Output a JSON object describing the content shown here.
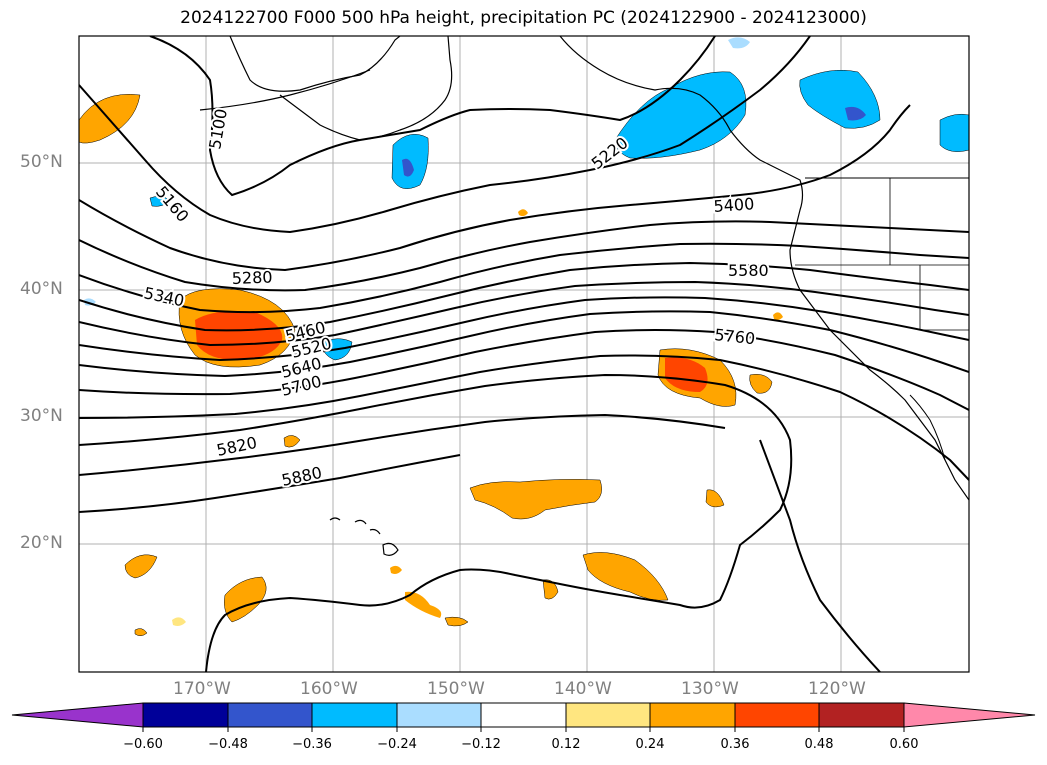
{
  "title": "2024122700 F000 500 hPa height, precipitation PC (2024122900 - 2024123000)",
  "lat_labels": [
    "50°N",
    "40°N",
    "30°N",
    "20°N"
  ],
  "lon_labels": [
    "170°W",
    "160°W",
    "150°W",
    "140°W",
    "130°W",
    "120°W"
  ],
  "colorbar": {
    "ticks": [
      "−0.60",
      "−0.48",
      "−0.36",
      "−0.24",
      "−0.12",
      "0.12",
      "0.24",
      "0.36",
      "0.48",
      "0.60"
    ],
    "colors": [
      "#9933cc",
      "#000099",
      "#3355cc",
      "#00bbff",
      "#aaddff",
      "#ffffff",
      "#ffe680",
      "#ffa500",
      "#ff4500",
      "#b22222",
      "#ff88aa"
    ]
  },
  "contour_labels": [
    "5100",
    "5160",
    "5220",
    "5280",
    "5340",
    "5400",
    "5460",
    "5520",
    "5580",
    "5640",
    "5700",
    "5760",
    "5820",
    "5880"
  ]
}
